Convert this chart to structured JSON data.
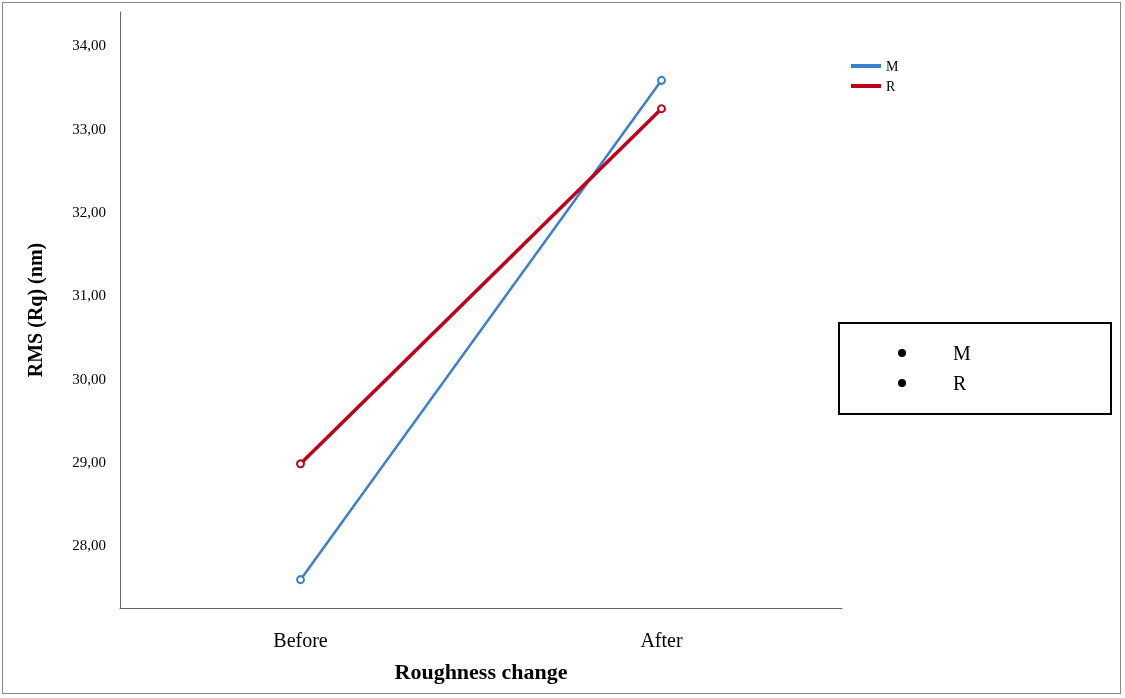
{
  "chart_data": {
    "type": "line",
    "xlabel": "Roughness change",
    "ylabel": "RMS (Rq) (nm)",
    "categories": [
      "Before",
      "After"
    ],
    "series": [
      {
        "name": "M",
        "color": "#3a7fd0",
        "values": [
          27.59,
          33.58
        ]
      },
      {
        "name": "R",
        "color": "#c0001a",
        "values": [
          28.98,
          33.24
        ]
      }
    ],
    "ylim": [
      27.25,
      34.4
    ],
    "yticks": [
      {
        "value": 28,
        "label": "28,00"
      },
      {
        "value": 29,
        "label": "29,00"
      },
      {
        "value": 30,
        "label": "30,00"
      },
      {
        "value": 31,
        "label": "31,00"
      },
      {
        "value": 32,
        "label": "32,00"
      },
      {
        "value": 33,
        "label": "33,00"
      },
      {
        "value": 34,
        "label": "34,00"
      }
    ],
    "grid": false,
    "legend": "top right",
    "marker": "circle",
    "line_style": "solid",
    "annotations": [
      "M",
      "R"
    ]
  }
}
